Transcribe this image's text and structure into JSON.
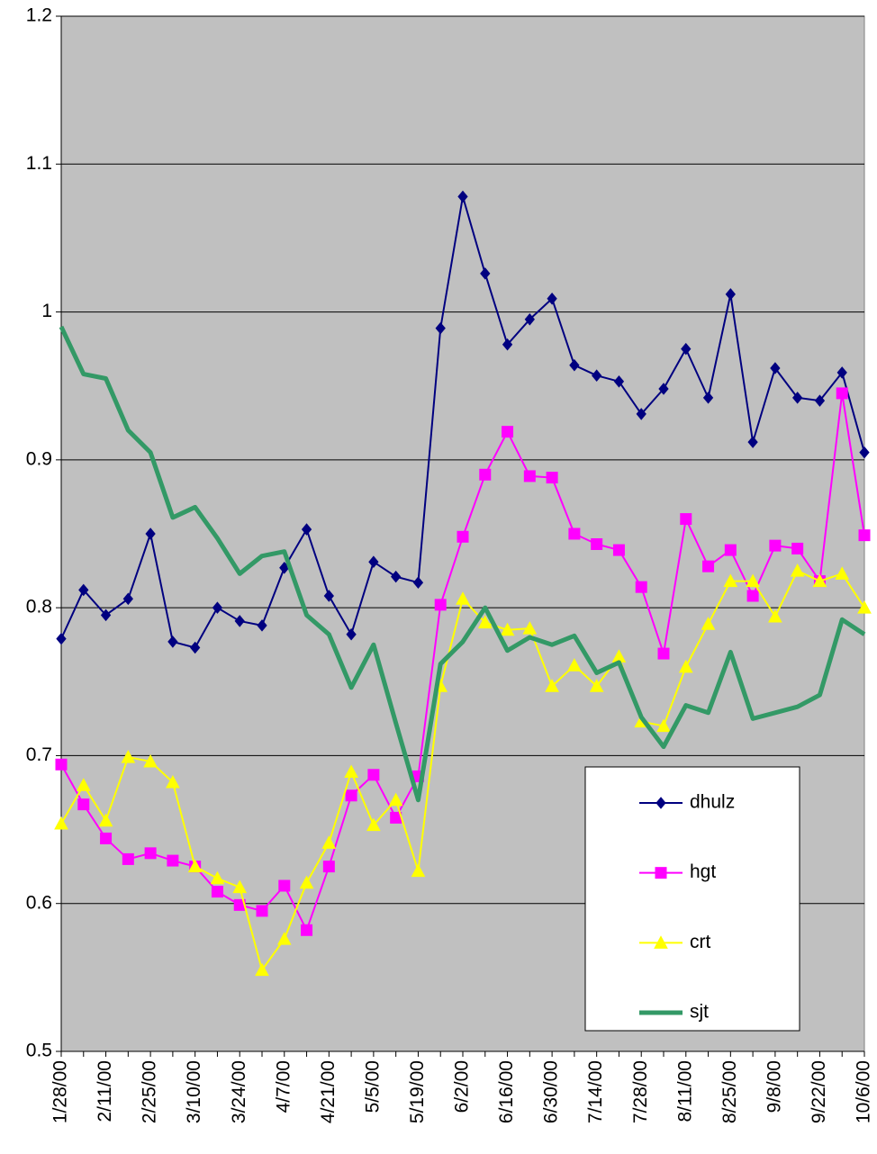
{
  "chart_data": {
    "type": "line",
    "categories": [
      "1/28/00",
      null,
      "2/11/00",
      null,
      "2/25/00",
      null,
      "3/10/00",
      null,
      "3/24/00",
      null,
      "4/7/00",
      null,
      "4/21/00",
      null,
      "5/5/00",
      null,
      "5/19/00",
      null,
      "6/2/00",
      null,
      "6/16/00",
      null,
      "6/30/00",
      null,
      "7/14/00",
      null,
      "7/28/00",
      null,
      "8/11/00",
      null,
      "8/25/00",
      null,
      "9/8/00",
      null,
      "9/22/00",
      null,
      "10/6/00"
    ],
    "series": [
      {
        "name": "dhulz",
        "color": "#000080",
        "marker": "diamond",
        "values": [
          0.779,
          0.812,
          0.795,
          0.806,
          0.85,
          0.777,
          0.773,
          0.8,
          0.791,
          0.788,
          0.827,
          0.853,
          0.808,
          0.782,
          0.831,
          0.821,
          0.817,
          0.989,
          1.078,
          1.026,
          0.978,
          0.995,
          1.009,
          0.964,
          0.957,
          0.953,
          0.931,
          0.948,
          0.975,
          0.942,
          1.012,
          0.912,
          0.962,
          0.942,
          0.94,
          0.959,
          0.905
        ]
      },
      {
        "name": "hgt",
        "color": "#ff00ff",
        "marker": "square",
        "values": [
          0.694,
          0.667,
          0.644,
          0.63,
          0.634,
          0.629,
          0.625,
          0.608,
          0.599,
          0.595,
          0.612,
          0.582,
          0.625,
          0.673,
          0.687,
          0.658,
          0.686,
          0.802,
          0.848,
          0.89,
          0.919,
          0.889,
          0.888,
          0.85,
          0.843,
          0.839,
          0.814,
          0.769,
          0.86,
          0.828,
          0.839,
          0.808,
          0.842,
          0.84,
          0.818,
          0.945,
          0.849
        ]
      },
      {
        "name": "crt",
        "color": "#ffff00",
        "marker": "triangle",
        "values": [
          0.654,
          0.68,
          0.656,
          0.699,
          0.696,
          0.682,
          0.625,
          0.617,
          0.611,
          0.555,
          0.576,
          0.614,
          0.641,
          0.689,
          0.653,
          0.67,
          0.622,
          0.747,
          0.806,
          0.79,
          0.785,
          0.786,
          0.747,
          0.761,
          0.747,
          0.767,
          0.723,
          0.72,
          0.76,
          0.789,
          0.818,
          0.818,
          0.794,
          0.825,
          0.818,
          0.823,
          0.8
        ]
      },
      {
        "name": "sjt",
        "color": "#339966",
        "marker": "none",
        "values": [
          0.99,
          0.958,
          0.955,
          0.92,
          0.905,
          0.861,
          0.868,
          0.847,
          0.823,
          0.835,
          0.838,
          0.795,
          0.782,
          0.746,
          0.775,
          0.722,
          0.67,
          0.762,
          0.777,
          0.8,
          0.771,
          0.78,
          0.775,
          0.781,
          0.756,
          0.763,
          0.726,
          0.706,
          0.734,
          0.729,
          0.77,
          0.725,
          0.729,
          0.733,
          0.741,
          0.792,
          0.782
        ]
      }
    ],
    "ylim": [
      0.5,
      1.2
    ],
    "yticks": [
      0.5,
      0.6,
      0.7,
      0.8,
      0.9,
      1,
      1.1,
      1.2
    ],
    "grid": true,
    "legend": "lower right"
  }
}
